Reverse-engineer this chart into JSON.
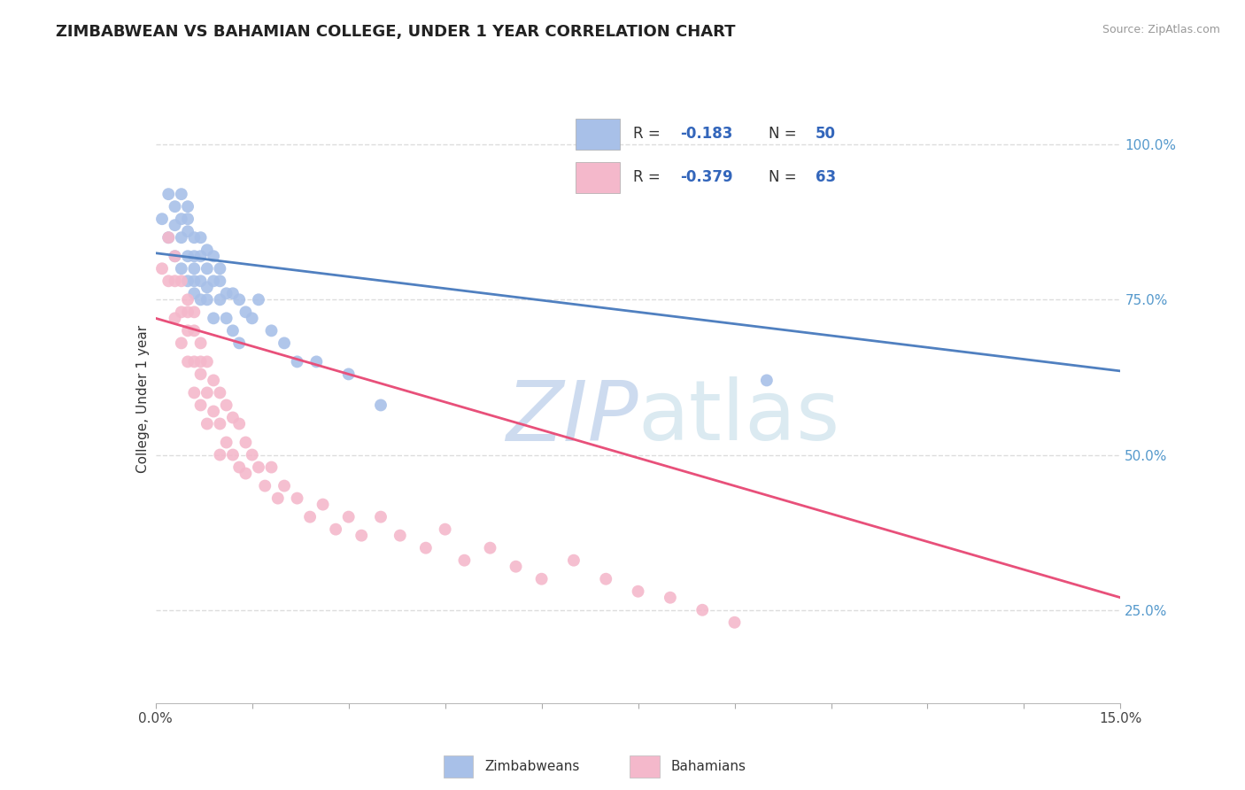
{
  "title": "ZIMBABWEAN VS BAHAMIAN COLLEGE, UNDER 1 YEAR CORRELATION CHART",
  "source_text": "Source: ZipAtlas.com",
  "ylabel": "College, Under 1 year",
  "xlim": [
    0.0,
    0.15
  ],
  "ylim": [
    0.1,
    1.08
  ],
  "xtick_vals": [
    0.0,
    0.015,
    0.03,
    0.045,
    0.06,
    0.075,
    0.09,
    0.105,
    0.12,
    0.135,
    0.15
  ],
  "ytick_vals": [
    0.25,
    0.5,
    0.75,
    1.0
  ],
  "ytick_labels": [
    "25.0%",
    "50.0%",
    "75.0%",
    "100.0%"
  ],
  "blue_color": "#A8C0E8",
  "pink_color": "#F4B8CB",
  "blue_line_color": "#5080C0",
  "pink_line_color": "#E8507A",
  "legend_R1_val": "-0.183",
  "legend_N1_val": "50",
  "legend_R2_val": "-0.379",
  "legend_N2_val": "63",
  "blue_scatter_x": [
    0.001,
    0.002,
    0.002,
    0.003,
    0.003,
    0.003,
    0.004,
    0.004,
    0.004,
    0.004,
    0.005,
    0.005,
    0.005,
    0.005,
    0.005,
    0.006,
    0.006,
    0.006,
    0.006,
    0.006,
    0.007,
    0.007,
    0.007,
    0.007,
    0.008,
    0.008,
    0.008,
    0.008,
    0.009,
    0.009,
    0.009,
    0.01,
    0.01,
    0.01,
    0.011,
    0.011,
    0.012,
    0.012,
    0.013,
    0.013,
    0.014,
    0.015,
    0.016,
    0.018,
    0.02,
    0.022,
    0.025,
    0.03,
    0.035,
    0.095
  ],
  "blue_scatter_y": [
    0.88,
    0.92,
    0.85,
    0.9,
    0.87,
    0.82,
    0.88,
    0.85,
    0.8,
    0.92,
    0.86,
    0.88,
    0.82,
    0.78,
    0.9,
    0.82,
    0.85,
    0.78,
    0.8,
    0.76,
    0.82,
    0.78,
    0.85,
    0.75,
    0.8,
    0.77,
    0.83,
    0.75,
    0.78,
    0.82,
    0.72,
    0.78,
    0.75,
    0.8,
    0.76,
    0.72,
    0.76,
    0.7,
    0.75,
    0.68,
    0.73,
    0.72,
    0.75,
    0.7,
    0.68,
    0.65,
    0.65,
    0.63,
    0.58,
    0.62
  ],
  "pink_scatter_x": [
    0.001,
    0.002,
    0.002,
    0.003,
    0.003,
    0.003,
    0.004,
    0.004,
    0.004,
    0.005,
    0.005,
    0.005,
    0.005,
    0.006,
    0.006,
    0.006,
    0.006,
    0.007,
    0.007,
    0.007,
    0.007,
    0.008,
    0.008,
    0.008,
    0.009,
    0.009,
    0.01,
    0.01,
    0.01,
    0.011,
    0.011,
    0.012,
    0.012,
    0.013,
    0.013,
    0.014,
    0.014,
    0.015,
    0.016,
    0.017,
    0.018,
    0.019,
    0.02,
    0.022,
    0.024,
    0.026,
    0.028,
    0.03,
    0.032,
    0.035,
    0.038,
    0.042,
    0.045,
    0.048,
    0.052,
    0.056,
    0.06,
    0.065,
    0.07,
    0.075,
    0.08,
    0.085,
    0.09
  ],
  "pink_scatter_y": [
    0.8,
    0.85,
    0.78,
    0.82,
    0.78,
    0.72,
    0.78,
    0.73,
    0.68,
    0.75,
    0.7,
    0.65,
    0.73,
    0.7,
    0.65,
    0.6,
    0.73,
    0.68,
    0.63,
    0.58,
    0.65,
    0.65,
    0.6,
    0.55,
    0.62,
    0.57,
    0.6,
    0.55,
    0.5,
    0.58,
    0.52,
    0.56,
    0.5,
    0.55,
    0.48,
    0.52,
    0.47,
    0.5,
    0.48,
    0.45,
    0.48,
    0.43,
    0.45,
    0.43,
    0.4,
    0.42,
    0.38,
    0.4,
    0.37,
    0.4,
    0.37,
    0.35,
    0.38,
    0.33,
    0.35,
    0.32,
    0.3,
    0.33,
    0.3,
    0.28,
    0.27,
    0.25,
    0.23
  ],
  "blue_trend_x": [
    0.0,
    0.15
  ],
  "blue_trend_y": [
    0.825,
    0.635
  ],
  "pink_trend_x": [
    0.0,
    0.15
  ],
  "pink_trend_y": [
    0.72,
    0.27
  ],
  "background_color": "#FFFFFF",
  "grid_color": "#DDDDDD",
  "title_fontsize": 13,
  "label_fontsize": 11,
  "tick_fontsize": 11,
  "marker_size": 10,
  "right_tick_color": "#5599CC",
  "watermark_color": "#DDE8F0",
  "legend_val_color": "#3366BB"
}
